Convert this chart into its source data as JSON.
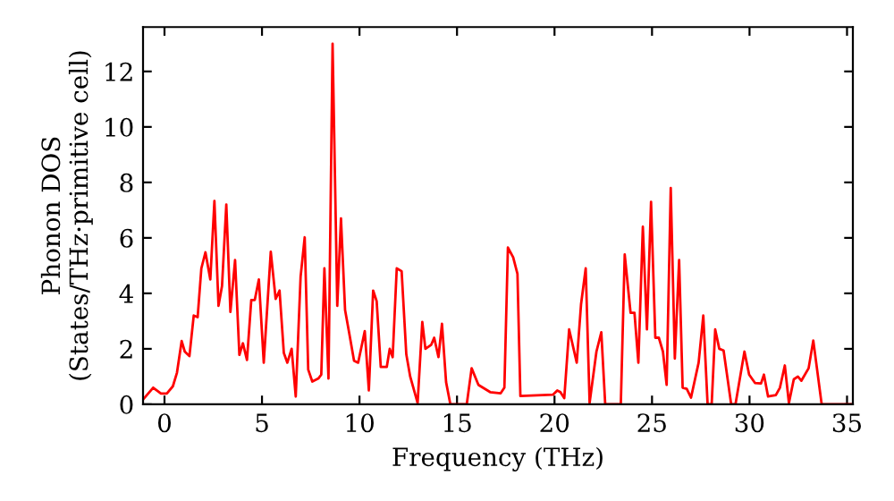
{
  "chart_data": {
    "type": "line",
    "xlabel": "Frequency (THz)",
    "ylabel": "Phonon DOS\n(States/THz·primitive cell)",
    "xlim": [
      -1.1,
      35.3
    ],
    "ylim": [
      0,
      13.6
    ],
    "xticks": [
      0,
      5,
      10,
      15,
      20,
      25,
      30,
      35
    ],
    "yticks": [
      0,
      2,
      4,
      6,
      8,
      10,
      12
    ],
    "grid": false,
    "legend": false,
    "marker": "none",
    "line_style": "solid",
    "series": [
      {
        "color": "#ff0000",
        "x": [
          -1.1,
          -0.58,
          -0.18,
          0.12,
          0.43,
          0.64,
          0.88,
          1.04,
          1.28,
          1.5,
          1.7,
          1.89,
          2.1,
          2.35,
          2.56,
          2.77,
          2.95,
          3.17,
          3.38,
          3.62,
          3.84,
          4.02,
          4.23,
          4.45,
          4.63,
          4.84,
          5.09,
          5.45,
          5.7,
          5.9,
          6.12,
          6.3,
          6.52,
          6.73,
          6.98,
          7.19,
          7.37,
          7.58,
          7.89,
          8.04,
          8.2,
          8.41,
          8.62,
          8.86,
          9.05,
          9.26,
          9.48,
          9.72,
          9.93,
          10.27,
          10.48,
          10.7,
          10.88,
          11.09,
          11.4,
          11.55,
          11.7,
          11.91,
          12.16,
          12.4,
          12.6,
          12.98,
          13.22,
          13.38,
          13.68,
          13.83,
          14.05,
          14.23,
          14.44,
          14.66,
          15.5,
          15.75,
          16.1,
          16.7,
          17.24,
          17.43,
          17.61,
          17.88,
          18.1,
          18.25,
          19.93,
          20.14,
          20.3,
          20.5,
          20.75,
          21.14,
          21.36,
          21.6,
          21.8,
          22.15,
          22.4,
          22.6,
          23.4,
          23.6,
          23.9,
          24.1,
          24.3,
          24.53,
          24.74,
          24.95,
          25.17,
          25.35,
          25.56,
          25.75,
          25.96,
          26.17,
          26.39,
          26.57,
          26.78,
          27.0,
          27.39,
          27.63,
          27.85,
          28.06,
          28.24,
          28.45,
          28.67,
          29.06,
          29.28,
          29.74,
          29.98,
          30.28,
          30.59,
          30.74,
          30.95,
          31.35,
          31.56,
          31.81,
          32.02,
          32.27,
          32.48,
          32.66,
          33.03,
          33.27,
          33.7,
          35.3
        ],
        "values": [
          0.17,
          0.6,
          0.39,
          0.39,
          0.65,
          1.14,
          2.28,
          1.9,
          1.74,
          3.2,
          3.14,
          4.9,
          5.48,
          4.5,
          7.33,
          3.55,
          4.26,
          7.2,
          3.33,
          5.2,
          1.78,
          2.2,
          1.6,
          3.76,
          3.76,
          4.5,
          1.5,
          5.5,
          3.8,
          4.1,
          1.85,
          1.5,
          2.0,
          0.28,
          4.6,
          6.02,
          1.25,
          0.82,
          0.93,
          1.07,
          4.9,
          0.93,
          13.0,
          3.55,
          6.7,
          3.4,
          2.54,
          1.57,
          1.5,
          2.64,
          0.5,
          4.1,
          3.72,
          1.35,
          1.35,
          2.0,
          1.7,
          4.9,
          4.8,
          1.8,
          1.0,
          0.05,
          2.97,
          2.0,
          2.15,
          2.4,
          1.7,
          2.9,
          0.8,
          0.0,
          0.0,
          1.3,
          0.7,
          0.44,
          0.4,
          0.6,
          5.65,
          5.3,
          4.7,
          0.3,
          0.35,
          0.5,
          0.44,
          0.22,
          2.7,
          1.5,
          3.6,
          4.9,
          0.05,
          1.9,
          2.6,
          0.0,
          0.0,
          5.4,
          3.3,
          3.3,
          1.5,
          6.4,
          2.7,
          7.3,
          2.4,
          2.4,
          1.9,
          0.7,
          7.8,
          1.65,
          5.2,
          0.6,
          0.56,
          0.24,
          1.5,
          3.2,
          0.0,
          0.0,
          2.7,
          2.0,
          1.94,
          0.0,
          0.0,
          1.9,
          1.07,
          0.77,
          0.75,
          1.07,
          0.28,
          0.33,
          0.6,
          1.4,
          0.05,
          0.9,
          1.0,
          0.85,
          1.3,
          2.3,
          0.0,
          0.0
        ]
      }
    ]
  }
}
